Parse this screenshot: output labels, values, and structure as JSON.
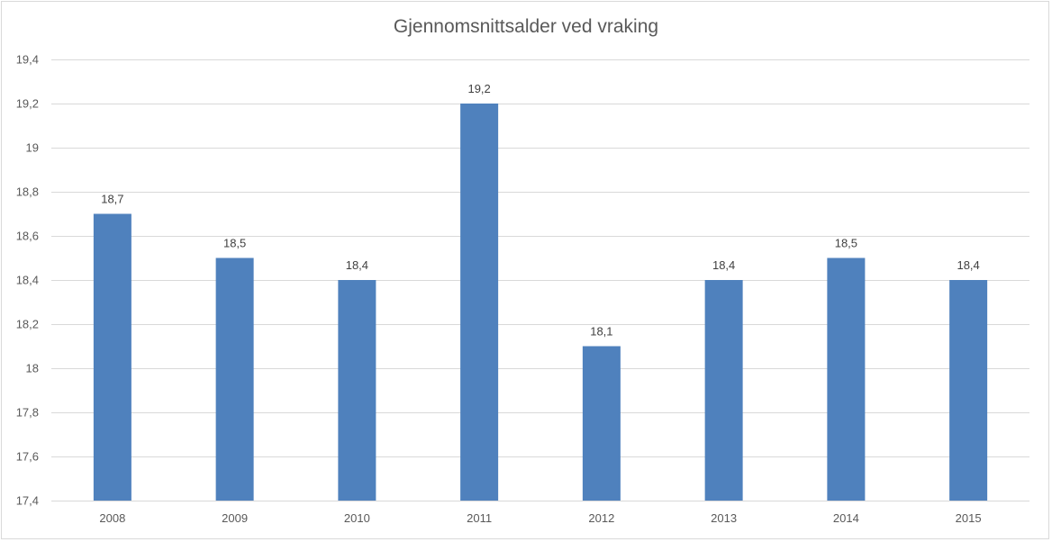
{
  "chart_data": {
    "type": "bar",
    "title": "Gjennomsnittsalder ved vraking",
    "categories": [
      "2008",
      "2009",
      "2010",
      "2011",
      "2012",
      "2013",
      "2014",
      "2015"
    ],
    "values": [
      18.7,
      18.5,
      18.4,
      19.2,
      18.1,
      18.4,
      18.5,
      18.4
    ],
    "data_labels": [
      "18,7",
      "18,5",
      "18,4",
      "19,2",
      "18,1",
      "18,4",
      "18,5",
      "18,4"
    ],
    "y_ticks": [
      17.4,
      17.6,
      17.8,
      18,
      18.2,
      18.4,
      18.6,
      18.8,
      19,
      19.2,
      19.4
    ],
    "y_tick_labels": [
      "17,4",
      "17,6",
      "17,8",
      "18",
      "18,2",
      "18,4",
      "18,6",
      "18,8",
      "19",
      "19,2",
      "19,4"
    ],
    "ylim": [
      17.4,
      19.4
    ],
    "grid": true,
    "legend": "none",
    "bar_color": "#4f81bd",
    "grid_color": "#d9d9d9"
  }
}
